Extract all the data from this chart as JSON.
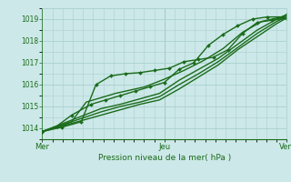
{
  "title": "Pression niveau de la mer( hPa )",
  "bg_color": "#cce8e8",
  "grid_color": "#aacfcf",
  "line_color": "#1a6b1a",
  "marker_color": "#1a6b1a",
  "xlim": [
    0,
    1
  ],
  "ylim": [
    1013.5,
    1019.5
  ],
  "yticks": [
    1014,
    1015,
    1016,
    1017,
    1018,
    1019
  ],
  "xtick_labels": [
    "Mer",
    "Jeu",
    "Ven"
  ],
  "xtick_pos": [
    0.0,
    0.5,
    1.0
  ],
  "series": [
    {
      "x": [
        0.0,
        0.06,
        0.12,
        0.2,
        0.26,
        0.32,
        0.38,
        0.44,
        0.5,
        0.56,
        0.62,
        0.68,
        0.74,
        0.8,
        0.86,
        0.92,
        0.98,
        1.0
      ],
      "y": [
        1013.85,
        1014.1,
        1014.6,
        1015.1,
        1015.3,
        1015.5,
        1015.7,
        1015.9,
        1016.1,
        1016.7,
        1017.0,
        1017.8,
        1018.3,
        1018.7,
        1019.0,
        1019.1,
        1019.1,
        1019.2
      ],
      "marker": true,
      "lw": 1.0
    },
    {
      "x": [
        0.0,
        0.08,
        0.16,
        0.24,
        0.32,
        0.4,
        0.48,
        0.56,
        0.64,
        0.72,
        0.8,
        0.88,
        0.96,
        1.0
      ],
      "y": [
        1013.85,
        1014.2,
        1014.55,
        1014.9,
        1015.1,
        1015.35,
        1015.6,
        1016.2,
        1016.7,
        1017.2,
        1017.85,
        1018.5,
        1019.0,
        1019.15
      ],
      "marker": false,
      "lw": 1.0
    },
    {
      "x": [
        0.0,
        0.08,
        0.16,
        0.24,
        0.32,
        0.4,
        0.48,
        0.56,
        0.64,
        0.72,
        0.8,
        0.88,
        0.96,
        1.0
      ],
      "y": [
        1013.85,
        1014.15,
        1014.45,
        1014.75,
        1015.0,
        1015.2,
        1015.45,
        1016.0,
        1016.5,
        1017.05,
        1017.7,
        1018.35,
        1018.9,
        1019.1
      ],
      "marker": false,
      "lw": 1.0
    },
    {
      "x": [
        0.0,
        0.08,
        0.16,
        0.24,
        0.32,
        0.4,
        0.48,
        0.56,
        0.64,
        0.72,
        0.8,
        0.88,
        0.96,
        1.0
      ],
      "y": [
        1013.85,
        1014.1,
        1014.35,
        1014.6,
        1014.85,
        1015.1,
        1015.3,
        1015.8,
        1016.35,
        1016.9,
        1017.6,
        1018.2,
        1018.8,
        1019.05
      ],
      "marker": false,
      "lw": 1.0
    },
    {
      "x": [
        0.0,
        0.08,
        0.16,
        0.22,
        0.28,
        0.34,
        0.4,
        0.46,
        0.52,
        0.58,
        0.64,
        0.7,
        0.76,
        0.82,
        0.88,
        0.94,
        1.0
      ],
      "y": [
        1013.85,
        1014.05,
        1014.3,
        1016.0,
        1016.4,
        1016.5,
        1016.55,
        1016.65,
        1016.75,
        1017.05,
        1017.15,
        1017.25,
        1017.6,
        1018.35,
        1018.85,
        1018.95,
        1019.05
      ],
      "marker": true,
      "lw": 1.0
    },
    {
      "x": [
        0.0,
        0.06,
        0.12,
        0.18,
        0.24,
        0.3,
        0.36,
        0.42,
        0.5,
        0.58,
        0.66,
        0.74,
        0.82,
        0.9,
        0.98,
        1.0
      ],
      "y": [
        1013.85,
        1014.05,
        1014.3,
        1015.2,
        1015.4,
        1015.6,
        1015.75,
        1015.9,
        1016.25,
        1016.65,
        1017.1,
        1017.65,
        1018.4,
        1018.9,
        1019.1,
        1019.2
      ],
      "marker": false,
      "lw": 1.0
    }
  ]
}
